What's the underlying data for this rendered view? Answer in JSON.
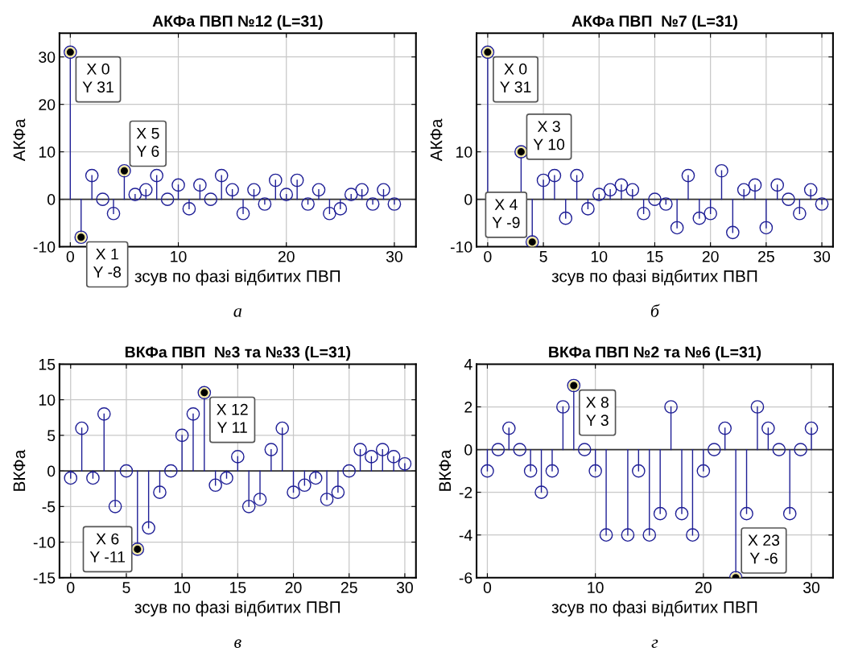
{
  "chart_data": [
    {
      "type": "lollipop",
      "title": "АКФа ПВП №12 (L=31)",
      "xlabel": "зсув по фазі відбитих ПВП",
      "ylabel": "АКФа",
      "x": [
        0,
        1,
        2,
        3,
        4,
        5,
        6,
        7,
        8,
        9,
        10,
        11,
        12,
        13,
        14,
        15,
        16,
        17,
        18,
        19,
        20,
        21,
        22,
        23,
        24,
        25,
        26,
        27,
        28,
        29,
        30
      ],
      "series": [
        {
          "color": "#1f1f96",
          "values": [
            31,
            -8,
            5,
            0,
            -3,
            6,
            1,
            2,
            5,
            0,
            3,
            -2,
            3,
            0,
            5,
            2,
            -3,
            2,
            -1,
            4,
            1,
            4,
            -1,
            2,
            -3,
            -2,
            1,
            2,
            -1,
            2,
            -1
          ]
        }
      ],
      "xlim": [
        -1,
        32
      ],
      "xticks": [
        0,
        10,
        20,
        30
      ],
      "ylim": [
        -10,
        35
      ],
      "yticks": [
        -10,
        0,
        10,
        20,
        30
      ],
      "grid": true,
      "marker": "circle",
      "annotations": [
        {
          "text": "X 0\nY 31",
          "x": 0,
          "y": 31
        },
        {
          "text": "X 5\nY 6",
          "x": 5,
          "y": 6
        },
        {
          "text": "X 1\nY -8",
          "x": 1,
          "y": -8
        },
        "а"
      ]
    },
    {
      "type": "lollipop",
      "title": "АКФа ПВП  №7 (L=31)",
      "xlabel": "зсув по фазі відбитих ПВП",
      "ylabel": "АКФа",
      "x": [
        0,
        1,
        2,
        3,
        4,
        5,
        6,
        7,
        8,
        9,
        10,
        11,
        12,
        13,
        14,
        15,
        16,
        17,
        18,
        19,
        20,
        21,
        22,
        23,
        24,
        25,
        26,
        27,
        28,
        29,
        30
      ],
      "series": [
        {
          "color": "#1f1f96",
          "values": [
            31,
            null,
            null,
            10,
            -9,
            4,
            5,
            -4,
            5,
            -2,
            1,
            2,
            3,
            2,
            -3,
            0,
            -1,
            -6,
            5,
            -4,
            -3,
            6,
            -7,
            2,
            3,
            -6,
            3,
            0,
            -3,
            2,
            -1
          ]
        }
      ],
      "xlim": [
        -1,
        31
      ],
      "xticks": [
        0,
        5,
        10,
        15,
        20,
        25,
        30
      ],
      "ylim": [
        -10,
        35
      ],
      "yticks": [
        -10,
        0,
        10,
        {
          "value": 20,
          "label": null
        },
        {
          "value": 30,
          "label": null
        }
      ],
      "grid": true,
      "marker": "circle",
      "annotations": [
        {
          "text": "X 0\nY 31",
          "x": 0,
          "y": 31
        },
        {
          "text": "X 3\nY 10",
          "x": 3,
          "y": 10
        },
        {
          "text": "X 4\nY -9",
          "x": 4,
          "y": -9
        },
        "б"
      ]
    },
    {
      "type": "lollipop",
      "title": "ВКФа ПВП  №3 та №33 (L=31)",
      "xlabel": "зсув по фазі відбитих ПВП",
      "ylabel": "ВКФа",
      "x": [
        0,
        1,
        2,
        3,
        4,
        5,
        6,
        7,
        8,
        9,
        10,
        11,
        12,
        13,
        14,
        15,
        16,
        17,
        18,
        19,
        20,
        21,
        22,
        23,
        24,
        25,
        26,
        27,
        28,
        29,
        30
      ],
      "series": [
        {
          "color": "#1f1f96",
          "values": [
            -1,
            6,
            -1,
            8,
            -5,
            0,
            -11,
            -8,
            -3,
            0,
            5,
            8,
            11,
            -2,
            -1,
            2,
            -5,
            -4,
            3,
            6,
            -3,
            -2,
            -1,
            -4,
            -3,
            0,
            3,
            2,
            3,
            2,
            1
          ]
        }
      ],
      "xlim": [
        -1,
        31
      ],
      "xticks": [
        0,
        5,
        10,
        15,
        20,
        25,
        30
      ],
      "ylim": [
        -15,
        15
      ],
      "yticks": [
        -15,
        -10,
        -5,
        0,
        5,
        10,
        15
      ],
      "grid": true,
      "marker": "circle",
      "annotations": [
        {
          "text": "X 12\nY 11",
          "x": 12,
          "y": 11
        },
        {
          "text": "X 6\nY -11",
          "x": 6,
          "y": -11
        },
        "в"
      ]
    },
    {
      "type": "lollipop",
      "title": "ВКФа ПВП №2 та №6 (L=31)",
      "xlabel": "зсув по фазі відбитих ПВП",
      "ylabel": "ВКФа",
      "x": [
        0,
        1,
        2,
        3,
        4,
        5,
        6,
        7,
        8,
        9,
        10,
        11,
        12,
        13,
        14,
        15,
        16,
        17,
        18,
        19,
        20,
        21,
        22,
        23,
        24,
        25,
        26,
        27,
        28,
        29,
        30
      ],
      "series": [
        {
          "color": "#1f1f96",
          "values": [
            -1,
            0,
            1,
            0,
            -1,
            -2,
            -1,
            2,
            3,
            0,
            -1,
            -4,
            null,
            -4,
            -1,
            -4,
            -3,
            2,
            -3,
            -4,
            -1,
            0,
            1,
            -6,
            -3,
            2,
            1,
            0,
            -3,
            0,
            1
          ]
        }
      ],
      "xlim": [
        -1,
        32
      ],
      "xticks": [
        0,
        10,
        20,
        30
      ],
      "ylim": [
        -6,
        4
      ],
      "yticks": [
        -6,
        -4,
        -2,
        0,
        2,
        4
      ],
      "grid": true,
      "marker": "circle",
      "annotations": [
        {
          "text": "X 8\nY 3",
          "x": 8,
          "y": 3
        },
        {
          "text": "X 23\nY -6",
          "x": 23,
          "y": -6
        },
        "г"
      ]
    }
  ]
}
